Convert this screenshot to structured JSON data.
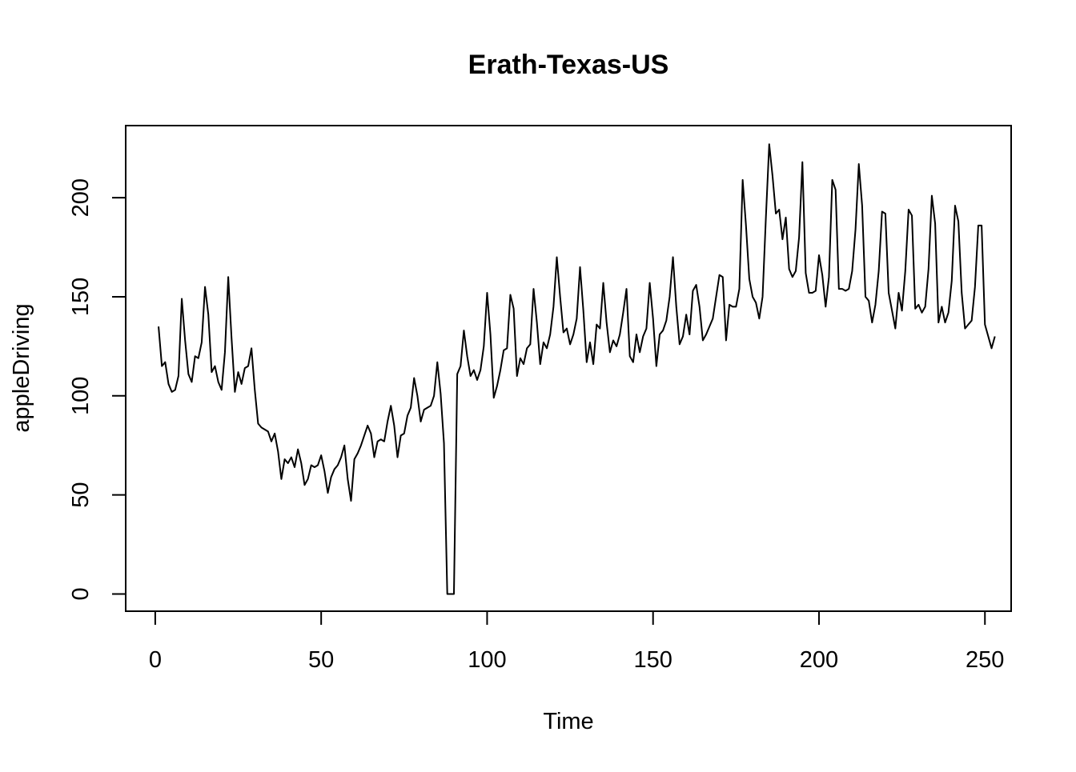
{
  "chart_data": {
    "type": "line",
    "title": "Erath-Texas-US",
    "xlabel": "Time",
    "ylabel": "appleDriving",
    "xlim": [
      -8.9,
      257.9
    ],
    "ylim": [
      -8.7,
      236.4
    ],
    "x_ticks": [
      0,
      50,
      100,
      150,
      200,
      250
    ],
    "y_ticks": [
      0,
      50,
      100,
      150,
      200
    ],
    "x_tick_labels": [
      "0",
      "50",
      "100",
      "150",
      "200",
      "250"
    ],
    "y_tick_labels": [
      "0",
      "50",
      "100",
      "150",
      "200"
    ],
    "grid": false,
    "legend": "none",
    "line_color": "#000000",
    "x_start": 1,
    "series": [
      {
        "values": [
          135,
          115,
          117,
          106,
          102,
          103,
          110,
          149,
          128,
          111,
          107,
          120,
          119,
          127,
          155,
          141,
          112,
          115,
          107,
          103,
          122,
          160,
          129,
          102,
          112,
          106,
          114,
          115,
          124,
          103,
          86,
          84,
          83,
          82,
          77,
          81,
          72,
          58,
          68,
          66,
          69,
          64,
          73,
          66,
          55,
          58,
          65,
          64,
          65,
          70,
          62,
          51,
          59,
          63,
          65,
          69,
          75,
          58,
          47,
          68,
          71,
          75,
          80,
          85,
          81,
          69,
          77,
          78,
          77,
          87,
          95,
          85,
          69,
          80,
          81,
          90,
          94,
          109,
          100,
          87,
          93,
          94,
          95,
          100,
          117,
          101,
          76,
          0,
          0,
          0,
          111,
          115,
          133,
          120,
          110,
          113,
          108,
          113,
          125,
          152,
          131,
          99,
          105,
          113,
          123,
          124,
          151,
          144,
          110,
          119,
          116,
          124,
          126,
          154,
          137,
          116,
          127,
          124,
          131,
          145,
          170,
          150,
          132,
          134,
          126,
          131,
          139,
          165,
          143,
          117,
          127,
          116,
          136,
          134,
          157,
          137,
          122,
          128,
          125,
          131,
          142,
          154,
          120,
          117,
          131,
          122,
          130,
          134,
          157,
          139,
          115,
          131,
          133,
          138,
          150,
          170,
          145,
          126,
          130,
          141,
          131,
          153,
          156,
          145,
          128,
          131,
          135,
          139,
          150,
          161,
          160,
          128,
          146,
          145,
          145,
          154,
          209,
          186,
          159,
          150,
          147,
          139,
          150,
          190,
          227,
          211,
          192,
          194,
          179,
          190,
          164,
          160,
          163,
          180,
          218,
          162,
          152,
          152,
          153,
          171,
          161,
          145,
          160,
          209,
          204,
          154,
          154,
          153,
          154,
          163,
          184,
          217,
          196,
          150,
          148,
          137,
          146,
          163,
          193,
          192,
          152,
          143,
          134,
          152,
          143,
          163,
          194,
          191,
          144,
          146,
          142,
          145,
          164,
          201,
          187,
          137,
          145,
          137,
          142,
          158,
          196,
          188,
          152,
          134,
          136,
          138,
          155,
          186,
          186,
          136,
          130,
          124,
          130
        ]
      }
    ]
  }
}
